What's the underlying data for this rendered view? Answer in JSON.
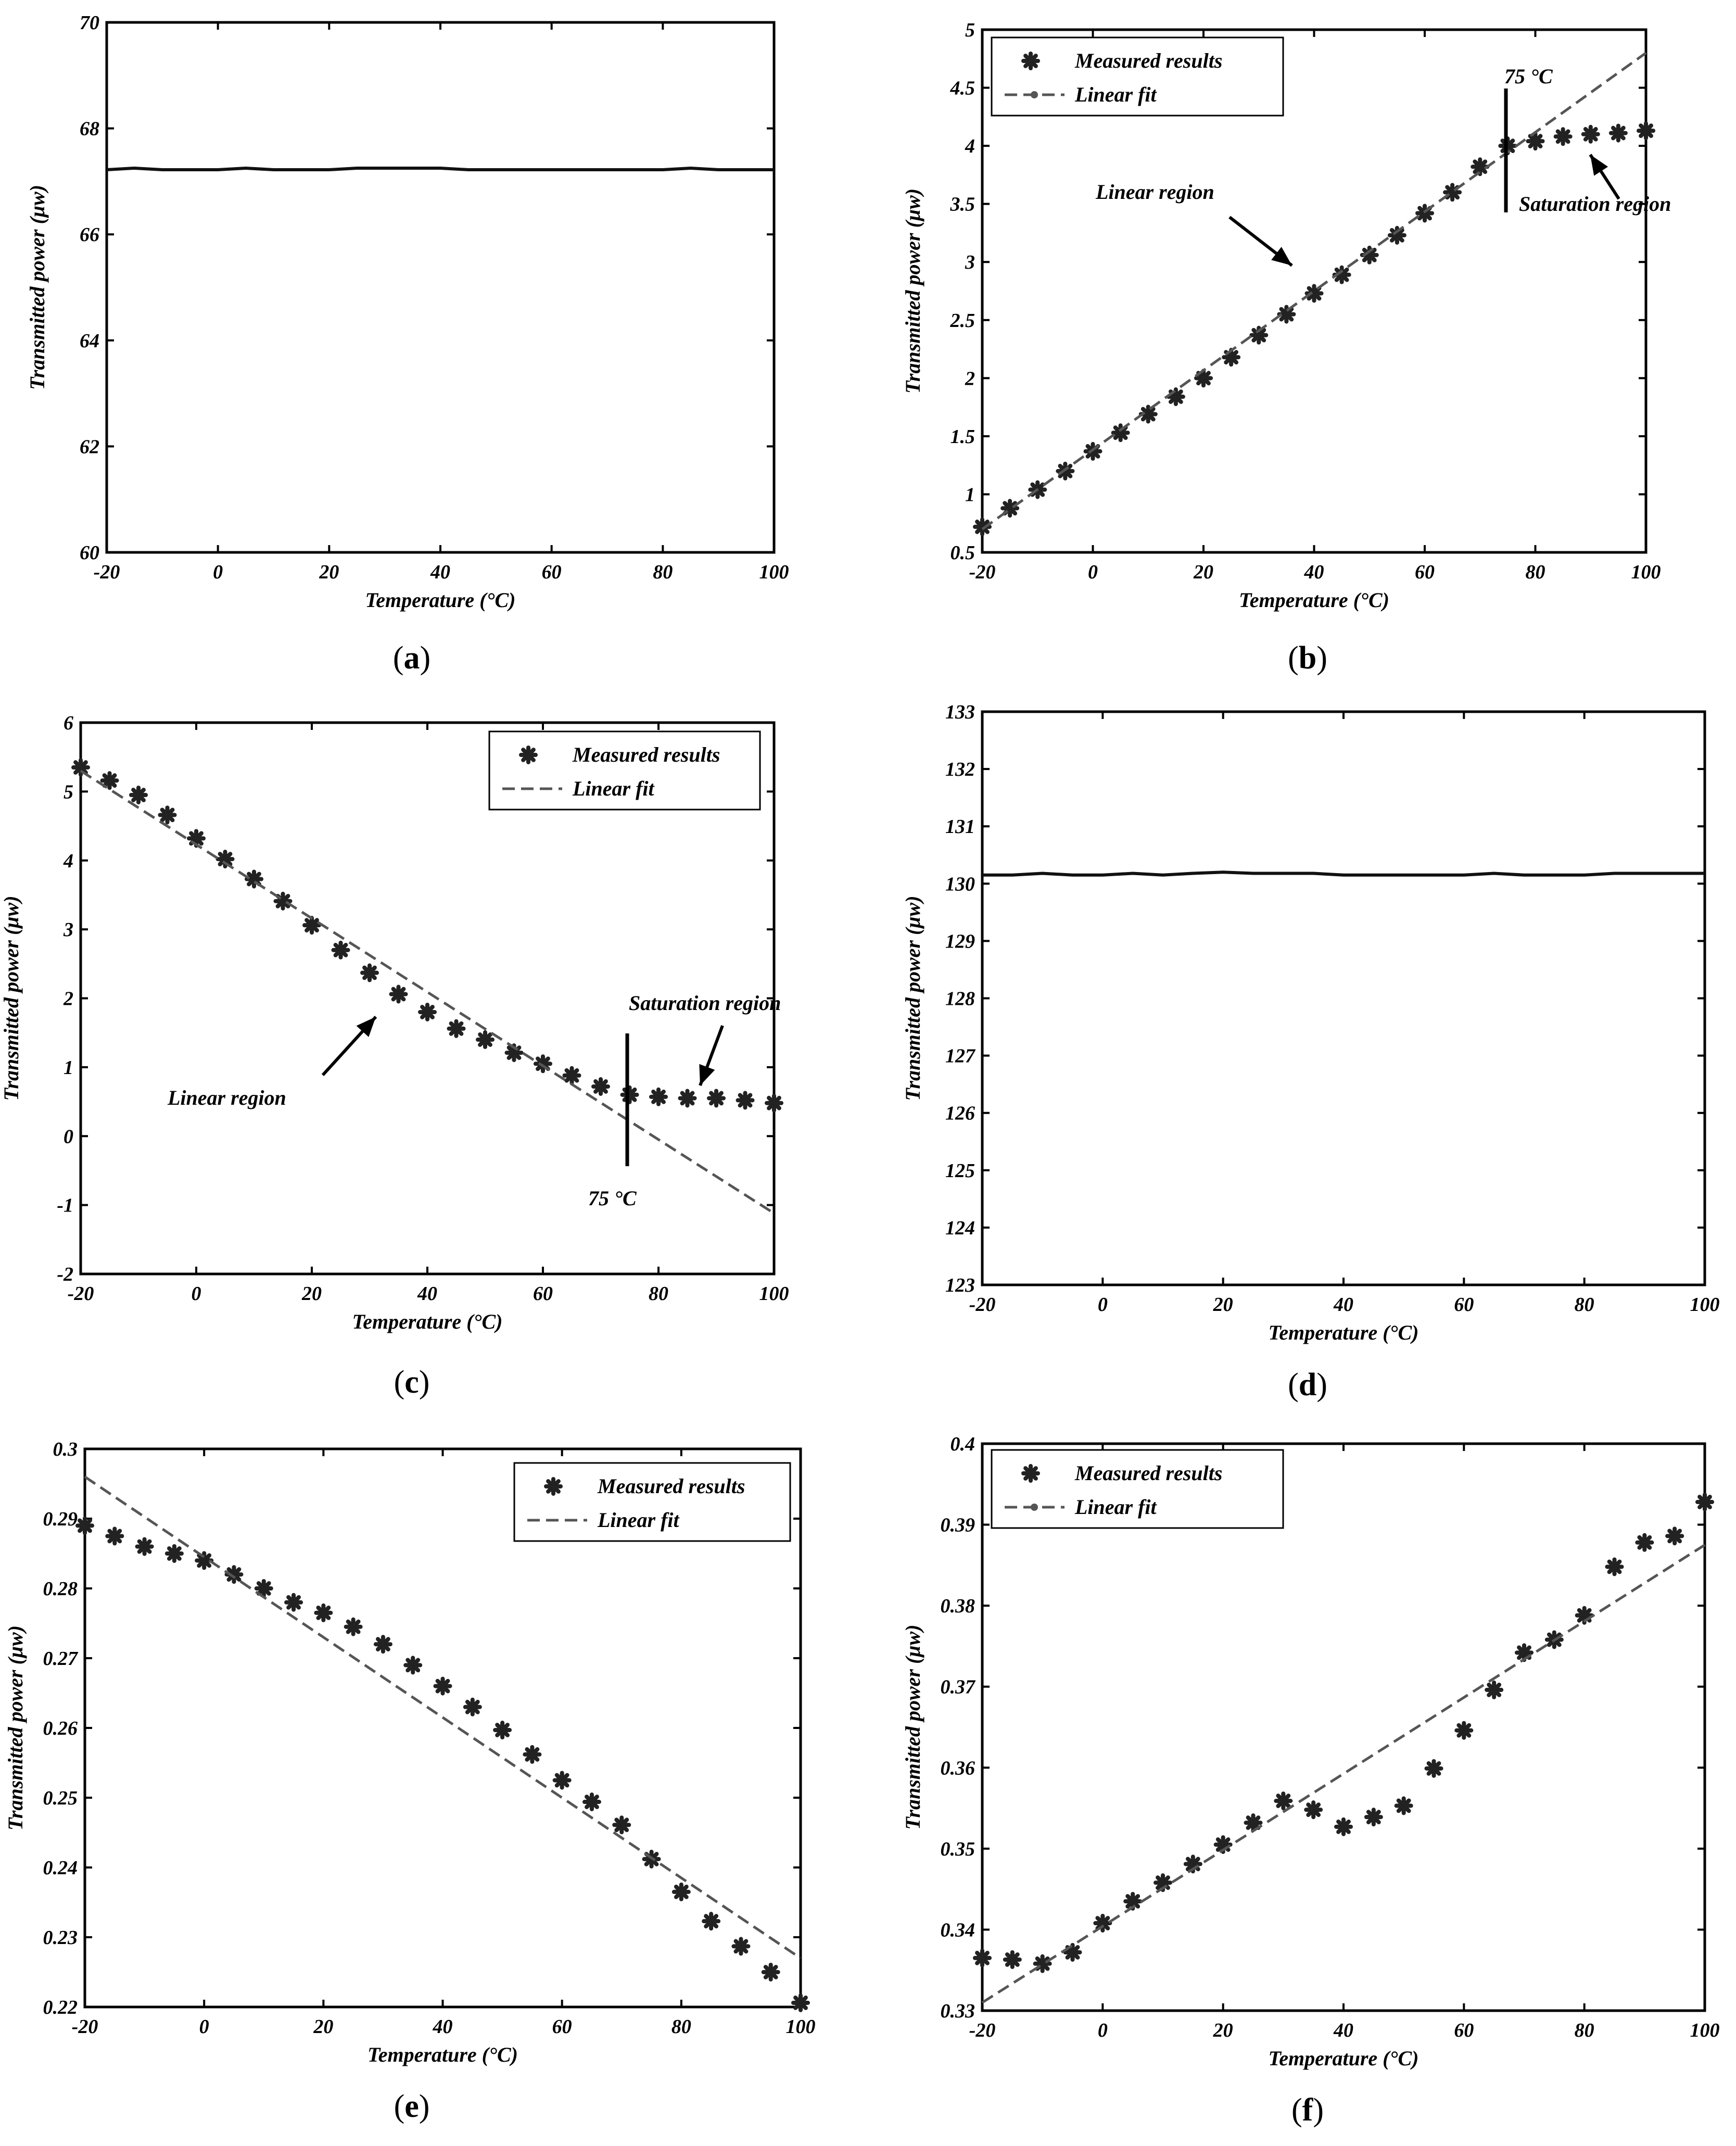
{
  "figure": {
    "panels": [
      {
        "caption_letter": "a"
      },
      {
        "caption_letter": "b"
      },
      {
        "caption_letter": "c"
      },
      {
        "caption_letter": "d"
      },
      {
        "caption_letter": "e"
      },
      {
        "caption_letter": "f"
      }
    ]
  },
  "colors": {
    "fit": "#555555",
    "marker": "#222222",
    "line": "#111111"
  },
  "chart_data": [
    {
      "id": "a",
      "type": "line",
      "xlabel": "Temperature (°C)",
      "ylabel": "Transmitted power (μw)",
      "xlim": [
        -20,
        100
      ],
      "ylim": [
        60,
        70
      ],
      "xticks": [
        "-20",
        "0",
        "20",
        "40",
        "60",
        "80",
        "100"
      ],
      "yticks": [
        "60",
        "62",
        "64",
        "66",
        "68",
        "70"
      ],
      "series": [
        {
          "name": "Transmitted power",
          "style": "solid",
          "x": [
            -20,
            -15,
            -10,
            -5,
            0,
            5,
            10,
            15,
            20,
            25,
            30,
            35,
            40,
            45,
            50,
            55,
            60,
            65,
            70,
            75,
            80,
            85,
            90,
            95,
            100
          ],
          "y": [
            67.22,
            67.25,
            67.22,
            67.22,
            67.22,
            67.25,
            67.22,
            67.22,
            67.22,
            67.25,
            67.25,
            67.25,
            67.25,
            67.22,
            67.22,
            67.22,
            67.22,
            67.22,
            67.22,
            67.22,
            67.22,
            67.25,
            67.22,
            67.22,
            67.22
          ]
        }
      ]
    },
    {
      "id": "b",
      "type": "scatter",
      "xlabel": "Temperature (°C)",
      "ylabel": "Transmitted power (μw)",
      "xlim": [
        -20,
        100
      ],
      "ylim": [
        0.5,
        5
      ],
      "xticks": [
        "-20",
        "0",
        "20",
        "40",
        "60",
        "80",
        "100"
      ],
      "yticks": [
        "0.5",
        "1",
        "1.5",
        "2",
        "2.5",
        "3",
        "3.5",
        "4",
        "4.5",
        "5"
      ],
      "legend": [
        "Measured results",
        "Linear fit"
      ],
      "legend_position": "top-left",
      "series": [
        {
          "name": "Measured results",
          "style": "marker",
          "x": [
            -20,
            -15,
            -10,
            -5,
            0,
            5,
            10,
            15,
            20,
            25,
            30,
            35,
            40,
            45,
            50,
            55,
            60,
            65,
            70,
            75,
            80,
            85,
            90,
            95,
            100
          ],
          "y": [
            0.72,
            0.88,
            1.04,
            1.2,
            1.37,
            1.53,
            1.69,
            1.84,
            2.0,
            2.18,
            2.37,
            2.55,
            2.73,
            2.89,
            3.06,
            3.23,
            3.42,
            3.6,
            3.82,
            4.0,
            4.04,
            4.08,
            4.1,
            4.11,
            4.13
          ]
        },
        {
          "name": "Linear fit",
          "style": "dashed-dot",
          "x": [
            -20,
            100
          ],
          "y": [
            0.7,
            4.8
          ]
        }
      ],
      "annotations": {
        "linear": "Linear region",
        "saturation": "Saturation region",
        "threshold": "75 °C"
      }
    },
    {
      "id": "c",
      "type": "scatter",
      "xlabel": "Temperature (°C)",
      "ylabel": "Transmitted power (μw)",
      "xlim": [
        -20,
        100
      ],
      "ylim": [
        -2,
        6
      ],
      "xticks": [
        "-20",
        "0",
        "20",
        "40",
        "60",
        "80",
        "100"
      ],
      "yticks": [
        "-2",
        "-1",
        "0",
        "1",
        "2",
        "3",
        "4",
        "5",
        "6"
      ],
      "legend": [
        "Measured results",
        "Linear fit"
      ],
      "legend_position": "top-right",
      "series": [
        {
          "name": "Measured results",
          "style": "marker",
          "x": [
            -20,
            -15,
            -10,
            -5,
            0,
            5,
            10,
            15,
            20,
            25,
            30,
            35,
            40,
            45,
            50,
            55,
            60,
            65,
            70,
            75,
            80,
            85,
            90,
            95,
            100
          ],
          "y": [
            5.35,
            5.16,
            4.95,
            4.66,
            4.32,
            4.02,
            3.73,
            3.41,
            3.06,
            2.7,
            2.37,
            2.06,
            1.8,
            1.56,
            1.4,
            1.21,
            1.05,
            0.88,
            0.72,
            0.6,
            0.57,
            0.55,
            0.55,
            0.52,
            0.48
          ]
        },
        {
          "name": "Linear fit",
          "style": "dashed",
          "x": [
            -20,
            100
          ],
          "y": [
            5.3,
            -1.12
          ]
        }
      ],
      "annotations": {
        "linear": "Linear region",
        "saturation": "Saturation region",
        "threshold": "75 °C"
      }
    },
    {
      "id": "d",
      "type": "line",
      "xlabel": "Temperature (°C)",
      "ylabel": "Transmitted power (μw)",
      "xlim": [
        -20,
        100
      ],
      "ylim": [
        123,
        133
      ],
      "xticks": [
        "-20",
        "0",
        "20",
        "40",
        "60",
        "80",
        "100"
      ],
      "yticks": [
        "123",
        "124",
        "125",
        "126",
        "127",
        "128",
        "129",
        "130",
        "131",
        "132",
        "133"
      ],
      "series": [
        {
          "name": "Transmitted power",
          "style": "solid",
          "x": [
            -20,
            -15,
            -10,
            -5,
            0,
            5,
            10,
            15,
            20,
            25,
            30,
            35,
            40,
            45,
            50,
            55,
            60,
            65,
            70,
            75,
            80,
            85,
            90,
            95,
            100
          ],
          "y": [
            130.15,
            130.15,
            130.18,
            130.15,
            130.15,
            130.18,
            130.15,
            130.18,
            130.2,
            130.18,
            130.18,
            130.18,
            130.15,
            130.15,
            130.15,
            130.15,
            130.15,
            130.18,
            130.15,
            130.15,
            130.15,
            130.18,
            130.18,
            130.18,
            130.18
          ]
        }
      ]
    },
    {
      "id": "e",
      "type": "scatter",
      "xlabel": "Temperature (°C)",
      "ylabel": "Transmitted power (μw)",
      "xlim": [
        -20,
        100
      ],
      "ylim": [
        0.22,
        0.3
      ],
      "xticks": [
        "-20",
        "0",
        "20",
        "40",
        "60",
        "80",
        "100"
      ],
      "yticks": [
        "0.22",
        "0.23",
        "0.24",
        "0.25",
        "0.26",
        "0.27",
        "0.28",
        "0.29",
        "0.3"
      ],
      "legend": [
        "Measured results",
        "Linear fit"
      ],
      "legend_position": "top-right",
      "series": [
        {
          "name": "Measured results",
          "style": "marker",
          "x": [
            -20,
            -15,
            -10,
            -5,
            0,
            5,
            10,
            15,
            20,
            25,
            30,
            35,
            40,
            45,
            50,
            55,
            60,
            65,
            70,
            75,
            80,
            85,
            90,
            95,
            100
          ],
          "y": [
            0.289,
            0.2875,
            0.286,
            0.285,
            0.284,
            0.282,
            0.28,
            0.278,
            0.2765,
            0.2745,
            0.272,
            0.269,
            0.266,
            0.263,
            0.2597,
            0.2562,
            0.2525,
            0.2494,
            0.2461,
            0.2412,
            0.2365,
            0.2323,
            0.2287,
            0.225,
            0.2206
          ]
        },
        {
          "name": "Linear fit",
          "style": "dashed",
          "x": [
            -20,
            100
          ],
          "y": [
            0.296,
            0.227
          ]
        }
      ]
    },
    {
      "id": "f",
      "type": "scatter",
      "xlabel": "Temperature (°C)",
      "ylabel": "Transmitted power (μw)",
      "xlim": [
        -20,
        100
      ],
      "ylim": [
        0.33,
        0.4
      ],
      "xticks": [
        "-20",
        "0",
        "20",
        "40",
        "60",
        "80",
        "100"
      ],
      "yticks": [
        "0.33",
        "0.34",
        "0.35",
        "0.36",
        "0.37",
        "0.38",
        "0.39",
        "0.4"
      ],
      "legend": [
        "Measured results",
        "Linear fit"
      ],
      "legend_position": "top-left",
      "series": [
        {
          "name": "Measured results",
          "style": "marker",
          "x": [
            -20,
            -15,
            -10,
            -5,
            0,
            5,
            10,
            15,
            20,
            25,
            30,
            35,
            40,
            45,
            50,
            55,
            60,
            65,
            70,
            75,
            80,
            85,
            90,
            95,
            100
          ],
          "y": [
            0.3365,
            0.3363,
            0.3358,
            0.3372,
            0.3408,
            0.3435,
            0.3458,
            0.3481,
            0.3505,
            0.3532,
            0.3559,
            0.3548,
            0.3527,
            0.3539,
            0.3553,
            0.3599,
            0.3646,
            0.3696,
            0.3742,
            0.3758,
            0.3788,
            0.3848,
            0.3878,
            0.3886,
            0.3928
          ]
        },
        {
          "name": "Linear fit",
          "style": "dashed-dot",
          "x": [
            -20,
            100
          ],
          "y": [
            0.331,
            0.3875
          ]
        }
      ]
    }
  ]
}
